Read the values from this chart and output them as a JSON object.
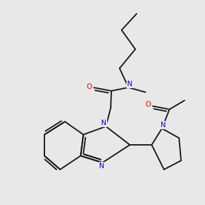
{
  "bg_color": "#e8e8e8",
  "bond_color": "#1a1a1a",
  "n_color": "#0000ee",
  "o_color": "#ee0000",
  "lw": 1.4,
  "figsize": [
    3.0,
    3.0
  ],
  "dpi": 100,
  "xlim": [
    0,
    10
  ],
  "ylim": [
    0,
    10
  ]
}
